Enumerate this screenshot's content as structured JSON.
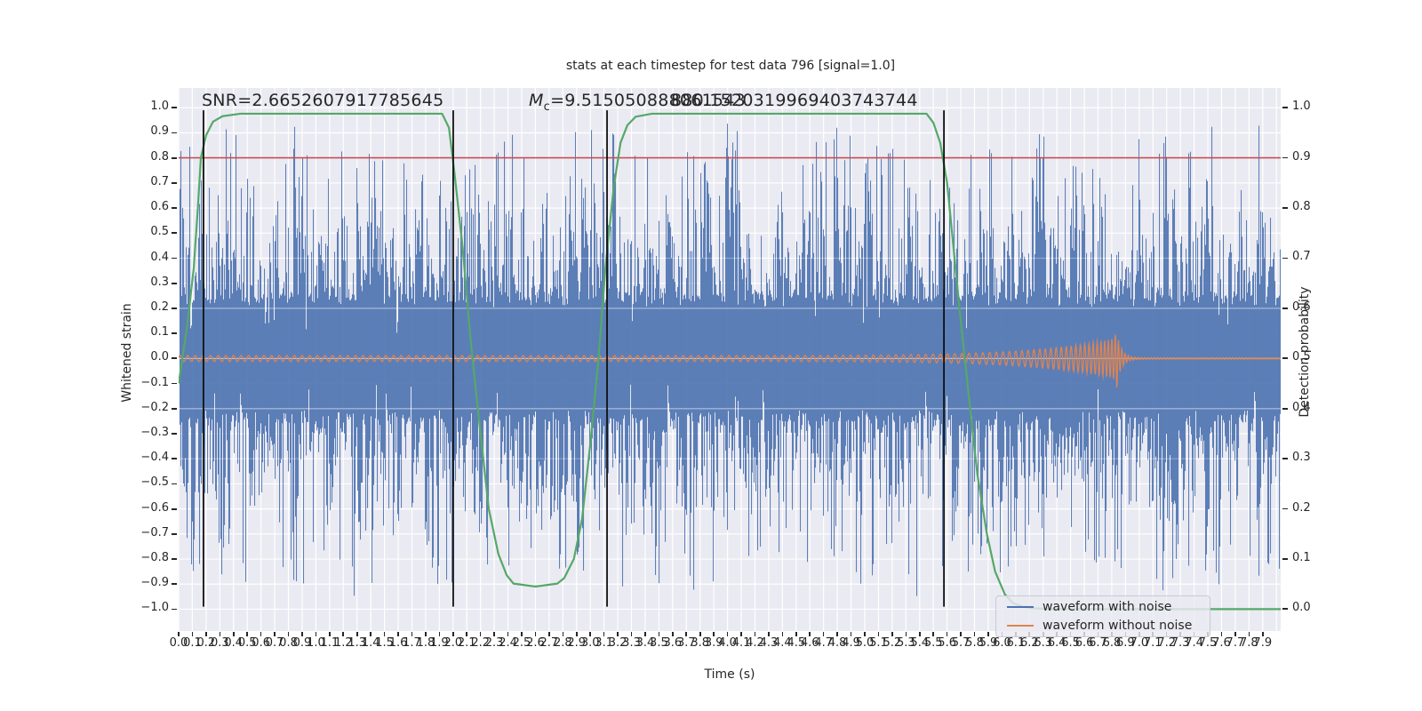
{
  "figure": {
    "background": "#ffffff",
    "axes_background": "#eaeaf2",
    "grid_color": "#ffffff",
    "text_color": "#262626"
  },
  "chart_data": {
    "type": "line",
    "title": "stats at each timestep for test data 796 [signal=1.0]",
    "xlabel": "Time (s)",
    "ylabel_left": "Whitened strain",
    "ylabel_right": "Detection probability",
    "xlim": [
      0,
      8.031
    ],
    "ylim_left": [
      -1.087,
      1.079
    ],
    "ylim_right": [
      -0.0436,
      1.0393
    ],
    "grid": true,
    "x_ticks": [
      "0.0",
      "0.1",
      "0.2",
      "0.3",
      "0.4",
      "0.5",
      "0.6",
      "0.7",
      "0.8",
      "0.9",
      "1.0",
      "1.1",
      "1.2",
      "1.3",
      "1.4",
      "1.5",
      "1.6",
      "1.7",
      "1.8",
      "1.9",
      "2.0",
      "2.1",
      "2.2",
      "2.3",
      "2.4",
      "2.5",
      "2.6",
      "2.7",
      "2.8",
      "2.9",
      "3.0",
      "3.1",
      "3.2",
      "3.3",
      "3.4",
      "3.5",
      "3.6",
      "3.7",
      "3.8",
      "3.9",
      "4.0",
      "4.1",
      "4.2",
      "4.3",
      "4.4",
      "4.5",
      "4.6",
      "4.7",
      "4.8",
      "4.9",
      "5.0",
      "5.1",
      "5.2",
      "5.3",
      "5.4",
      "5.5",
      "5.6",
      "5.7",
      "5.8",
      "5.9",
      "6.0",
      "6.1",
      "6.2",
      "6.3",
      "6.4",
      "6.5",
      "6.6",
      "6.7",
      "6.8",
      "6.9",
      "7.0",
      "7.1",
      "7.2",
      "7.3",
      "7.4",
      "7.5",
      "7.6",
      "7.7",
      "7.8",
      "7.9"
    ],
    "y_ticks_left": [
      "1.0",
      "0.9",
      "0.8",
      "0.7",
      "0.6",
      "0.5",
      "0.4",
      "0.3",
      "0.2",
      "0.1",
      "0.0",
      "−0.1",
      "−0.2",
      "−0.3",
      "−0.4",
      "−0.5",
      "−0.6",
      "−0.7",
      "−0.8",
      "−0.9",
      "−1.0"
    ],
    "y_ticks_right": [
      "1.0",
      "0.9",
      "0.8",
      "0.7",
      "0.6",
      "0.5",
      "0.4",
      "0.3",
      "0.2",
      "0.1",
      "0.0"
    ],
    "annotations": {
      "snr_text": "SNR=2.6652607917785645",
      "mc_symbol": "M",
      "mc_subscript": "c",
      "mc_value": "=9.515050888061543",
      "overlapping_value": "880.1520319969403743744"
    },
    "threshold_line": {
      "value_right_axis": 0.9,
      "color": "#c44e52"
    },
    "event_vlines": {
      "times": [
        0.181,
        2.001,
        3.122,
        5.577
      ],
      "strain_span": [
        -0.99,
        0.99
      ],
      "color": "#111111"
    },
    "detection_probability": {
      "name": "detection probability",
      "color": "#55a868",
      "points": [
        [
          0,
          0.45
        ],
        [
          0.06,
          0.56
        ],
        [
          0.11,
          0.68
        ],
        [
          0.14,
          0.8
        ],
        [
          0.162,
          0.9
        ],
        [
          0.2,
          0.945
        ],
        [
          0.25,
          0.972
        ],
        [
          0.32,
          0.983
        ],
        [
          0.45,
          0.988
        ],
        [
          1.92,
          0.988
        ],
        [
          1.97,
          0.96
        ],
        [
          2.01,
          0.87
        ],
        [
          2.07,
          0.72
        ],
        [
          2.13,
          0.53
        ],
        [
          2.2,
          0.35
        ],
        [
          2.26,
          0.2
        ],
        [
          2.33,
          0.11
        ],
        [
          2.39,
          0.068
        ],
        [
          2.44,
          0.051
        ],
        [
          2.6,
          0.045
        ],
        [
          2.76,
          0.051
        ],
        [
          2.81,
          0.062
        ],
        [
          2.88,
          0.1
        ],
        [
          2.94,
          0.18
        ],
        [
          3.0,
          0.33
        ],
        [
          3.06,
          0.5
        ],
        [
          3.11,
          0.68
        ],
        [
          3.17,
          0.84
        ],
        [
          3.22,
          0.93
        ],
        [
          3.27,
          0.965
        ],
        [
          3.33,
          0.982
        ],
        [
          3.45,
          0.988
        ],
        [
          5.45,
          0.988
        ],
        [
          5.5,
          0.97
        ],
        [
          5.55,
          0.93
        ],
        [
          5.6,
          0.85
        ],
        [
          5.64,
          0.74
        ],
        [
          5.69,
          0.6
        ],
        [
          5.76,
          0.42
        ],
        [
          5.82,
          0.27
        ],
        [
          5.89,
          0.15
        ],
        [
          5.95,
          0.075
        ],
        [
          6.02,
          0.03
        ],
        [
          6.08,
          0.012
        ],
        [
          6.15,
          0.005
        ],
        [
          6.21,
          0.002
        ],
        [
          6.34,
          0.0005
        ],
        [
          6.6,
          0.0
        ],
        [
          8.031,
          0.0
        ]
      ]
    },
    "waveform_without_noise": {
      "name": "waveform without noise",
      "color": "#dd8452",
      "base_amplitude": 0.012,
      "peak_amplitude": 0.082,
      "merger_time": 6.84,
      "base_frequency_hz": 18,
      "merger_frequency_hz": 42
    },
    "waveform_with_noise": {
      "name": "waveform with noise",
      "color": "#4c72b0",
      "core_halfwidth": 0.21,
      "typical_spike": 0.55,
      "max_spike": 0.975,
      "seed": 796,
      "note": "dense pseudo-random whitened-noise strain, |s| mostly < 0.8"
    },
    "legend_position": "lower right"
  },
  "legend": {
    "items": [
      {
        "label": "waveform with noise",
        "color": "#4c72b0"
      },
      {
        "label": "waveform without noise",
        "color": "#dd8452"
      }
    ]
  }
}
